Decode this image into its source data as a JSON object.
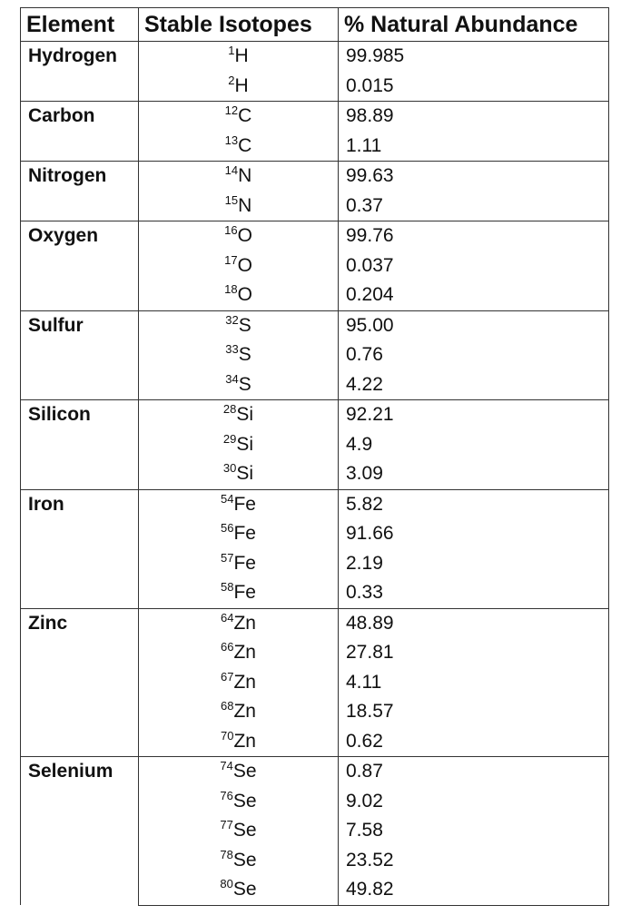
{
  "header": [
    "Element",
    "Stable Isotopes",
    "% Natural Abundance"
  ],
  "groups": [
    {
      "element": "Hydrogen",
      "isotopes": [
        {
          "mass": "1",
          "symbol": "H",
          "abundance": "99.985"
        },
        {
          "mass": "2",
          "symbol": "H",
          "abundance": "0.015"
        }
      ]
    },
    {
      "element": "Carbon",
      "isotopes": [
        {
          "mass": "12",
          "symbol": "C",
          "abundance": "98.89"
        },
        {
          "mass": "13",
          "symbol": "C",
          "abundance": "1.11"
        }
      ]
    },
    {
      "element": "Nitrogen",
      "isotopes": [
        {
          "mass": "14",
          "symbol": "N",
          "abundance": "99.63"
        },
        {
          "mass": "15",
          "symbol": "N",
          "abundance": "0.37"
        }
      ]
    },
    {
      "element": "Oxygen",
      "isotopes": [
        {
          "mass": "16",
          "symbol": "O",
          "abundance": "99.76"
        },
        {
          "mass": "17",
          "symbol": "O",
          "abundance": "0.037"
        },
        {
          "mass": "18",
          "symbol": "O",
          "abundance": "0.204"
        }
      ]
    },
    {
      "element": "Sulfur",
      "isotopes": [
        {
          "mass": "32",
          "symbol": "S",
          "abundance": "95.00"
        },
        {
          "mass": "33",
          "symbol": "S",
          "abundance": "0.76"
        },
        {
          "mass": "34",
          "symbol": "S",
          "abundance": "4.22"
        }
      ]
    },
    {
      "element": "Silicon",
      "isotopes": [
        {
          "mass": "28",
          "symbol": "Si",
          "abundance": "92.21"
        },
        {
          "mass": "29",
          "symbol": "Si",
          "abundance": "4.9"
        },
        {
          "mass": "30",
          "symbol": "Si",
          "abundance": "3.09"
        }
      ]
    },
    {
      "element": "Iron",
      "isotopes": [
        {
          "mass": "54",
          "symbol": "Fe",
          "abundance": "5.82"
        },
        {
          "mass": "56",
          "symbol": "Fe",
          "abundance": "91.66"
        },
        {
          "mass": "57",
          "symbol": "Fe",
          "abundance": "2.19"
        },
        {
          "mass": "58",
          "symbol": "Fe",
          "abundance": "0.33"
        }
      ]
    },
    {
      "element": "Zinc",
      "isotopes": [
        {
          "mass": "64",
          "symbol": "Zn",
          "abundance": "48.89"
        },
        {
          "mass": "66",
          "symbol": "Zn",
          "abundance": "27.81"
        },
        {
          "mass": "67",
          "symbol": "Zn",
          "abundance": "4.11"
        },
        {
          "mass": "68",
          "symbol": "Zn",
          "abundance": "18.57"
        },
        {
          "mass": "70",
          "symbol": "Zn",
          "abundance": "0.62"
        }
      ]
    },
    {
      "element": "Selenium",
      "isotopes": [
        {
          "mass": "74",
          "symbol": "Se",
          "abundance": "0.87"
        },
        {
          "mass": "76",
          "symbol": "Se",
          "abundance": "9.02"
        },
        {
          "mass": "77",
          "symbol": "Se",
          "abundance": "7.58"
        },
        {
          "mass": "78",
          "symbol": "Se",
          "abundance": "23.52"
        },
        {
          "mass": "80",
          "symbol": "Se",
          "abundance": "49.82"
        }
      ]
    }
  ]
}
